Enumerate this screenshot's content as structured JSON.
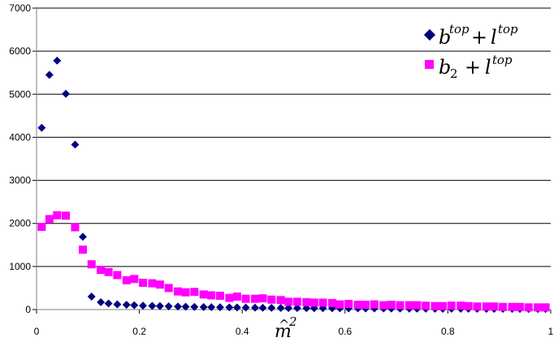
{
  "chart_data": {
    "type": "scatter",
    "xlabel": "m̂²",
    "ylabel": "",
    "xlim": [
      0,
      1
    ],
    "ylim": [
      0,
      7000
    ],
    "x_ticks": [
      "0",
      "0.2",
      "0.4",
      "0.6",
      "0.8",
      "1"
    ],
    "y_ticks": [
      "0",
      "1000",
      "2000",
      "3000",
      "4000",
      "5000",
      "6000",
      "7000"
    ],
    "grid": "horizontal",
    "legend_position": "top-right",
    "series": [
      {
        "name": "b^top + l^top",
        "marker": "diamond",
        "color": "#000080",
        "x": [
          0.01,
          0.025,
          0.04,
          0.057,
          0.075,
          0.09,
          0.107,
          0.125,
          0.14,
          0.157,
          0.175,
          0.19,
          0.207,
          0.225,
          0.24,
          0.257,
          0.275,
          0.29,
          0.307,
          0.325,
          0.34,
          0.357,
          0.375,
          0.39,
          0.407,
          0.425,
          0.44,
          0.457,
          0.475,
          0.49,
          0.507,
          0.525,
          0.54,
          0.557,
          0.575,
          0.59,
          0.607,
          0.625,
          0.64,
          0.657,
          0.675,
          0.69,
          0.707,
          0.725,
          0.74,
          0.757,
          0.775,
          0.79,
          0.807,
          0.825,
          0.84,
          0.857,
          0.875,
          0.89,
          0.907,
          0.925,
          0.94,
          0.957,
          0.975,
          0.99
        ],
        "y": [
          4220,
          5450,
          5780,
          5010,
          3830,
          1690,
          300,
          170,
          140,
          120,
          110,
          100,
          90,
          85,
          80,
          75,
          70,
          65,
          60,
          58,
          55,
          52,
          50,
          48,
          45,
          43,
          41,
          39,
          37,
          35,
          34,
          33,
          32,
          31,
          30,
          29,
          28,
          27,
          26,
          25,
          24,
          23,
          22,
          21,
          20,
          20,
          19,
          19,
          18,
          18,
          17,
          17,
          16,
          16,
          15,
          15,
          14,
          14,
          13,
          13
        ]
      },
      {
        "name": "b_2 + l^top",
        "marker": "square",
        "color": "#ff00ff",
        "x": [
          0.01,
          0.025,
          0.04,
          0.057,
          0.075,
          0.09,
          0.107,
          0.125,
          0.14,
          0.157,
          0.175,
          0.19,
          0.207,
          0.225,
          0.24,
          0.257,
          0.275,
          0.29,
          0.307,
          0.325,
          0.34,
          0.357,
          0.375,
          0.39,
          0.407,
          0.425,
          0.44,
          0.457,
          0.475,
          0.49,
          0.507,
          0.525,
          0.54,
          0.557,
          0.575,
          0.59,
          0.607,
          0.625,
          0.64,
          0.657,
          0.675,
          0.69,
          0.707,
          0.725,
          0.74,
          0.757,
          0.775,
          0.79,
          0.807,
          0.825,
          0.84,
          0.857,
          0.875,
          0.89,
          0.907,
          0.925,
          0.94,
          0.957,
          0.975,
          0.99
        ],
        "y": [
          1920,
          2100,
          2190,
          2180,
          1910,
          1390,
          1050,
          920,
          870,
          800,
          680,
          710,
          620,
          610,
          580,
          500,
          420,
          400,
          410,
          350,
          330,
          320,
          270,
          300,
          250,
          250,
          260,
          230,
          220,
          180,
          180,
          170,
          160,
          160,
          150,
          120,
          130,
          110,
          110,
          120,
          100,
          110,
          100,
          100,
          100,
          90,
          80,
          80,
          90,
          90,
          80,
          70,
          70,
          70,
          60,
          60,
          60,
          50,
          50,
          50
        ]
      }
    ]
  }
}
